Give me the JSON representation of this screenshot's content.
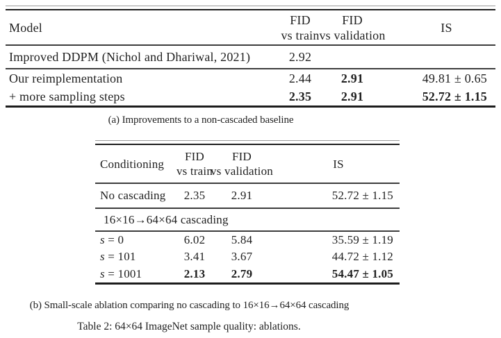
{
  "table_a": {
    "col_model": "Model",
    "col_fid_train_1": "FID",
    "col_fid_train_2": "vs train",
    "col_fid_val_1": "FID",
    "col_fid_val_2": "vs validation",
    "col_is": "IS",
    "row_baseline": {
      "model": "Improved DDPM (Nichol and Dhariwal, 2021)",
      "fid_train": "2.92",
      "fid_val": "",
      "is": ""
    },
    "row_reimpl": {
      "model": "Our reimplementation",
      "fid_train": "2.44",
      "fid_val": "2.91",
      "is": "49.81 ± 0.65"
    },
    "row_steps": {
      "model": "+ more sampling steps",
      "fid_train": "2.35",
      "fid_val": "2.91",
      "is": "52.72 ± 1.15"
    },
    "caption": "(a) Improvements to a non-cascaded baseline"
  },
  "table_b": {
    "col_conditioning": "Conditioning",
    "col_fid_train_1": "FID",
    "col_fid_train_2": "vs train",
    "col_fid_val_1": "FID",
    "col_fid_val_2": "vs validation",
    "col_is": "IS",
    "row_nocascade": {
      "conditioning": "No cascading",
      "fid_train": "2.35",
      "fid_val": "2.91",
      "is": "52.72 ± 1.15"
    },
    "section_header": "16×16→64×64 cascading",
    "row_s0": {
      "var": "s",
      "eq": " = 0",
      "fid_train": "6.02",
      "fid_val": "5.84",
      "is": "35.59 ± 1.19"
    },
    "row_s101": {
      "var": "s",
      "eq": " = 101",
      "fid_train": "3.41",
      "fid_val": "3.67",
      "is": "44.72 ± 1.12"
    },
    "row_s1001": {
      "var": "s",
      "eq": " = 1001",
      "fid_train": "2.13",
      "fid_val": "2.79",
      "is": "54.47 ± 1.05"
    },
    "caption": "(b) Small-scale ablation comparing no cascading to 16×16→64×64 cascading"
  },
  "main_caption": "Table 2: 64×64 ImageNet sample quality: ablations."
}
